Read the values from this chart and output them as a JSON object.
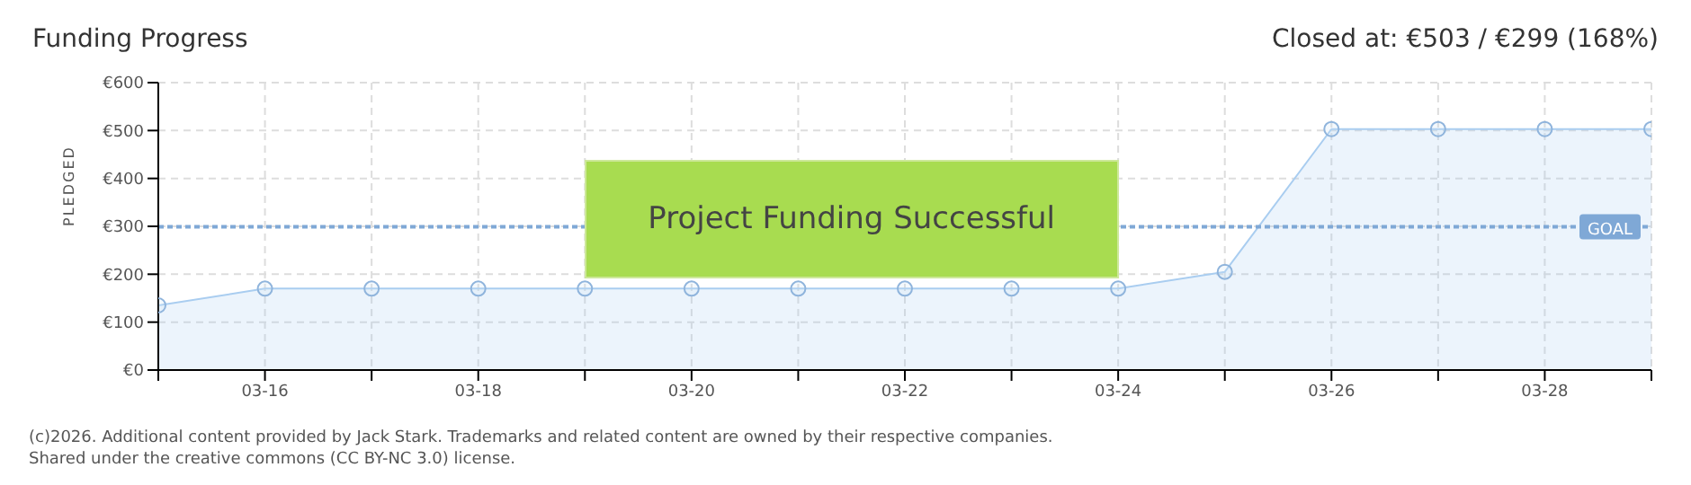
{
  "chart_data": {
    "type": "area",
    "title": "Funding Progress",
    "subtitle": "Closed at: €503 / €299 (168%)",
    "ylabel": "PLEDGED",
    "categories": [
      null,
      "03-16",
      null,
      "03-18",
      null,
      "03-20",
      null,
      "03-22",
      null,
      "03-24",
      null,
      "03-26",
      null,
      "03-28",
      null
    ],
    "series": [
      {
        "color": "#a9cdf0",
        "values": [
          135,
          170,
          170,
          170,
          170,
          170,
          170,
          170,
          170,
          170,
          205,
          503,
          503,
          503,
          503
        ]
      }
    ],
    "ylim": [
      0,
      600
    ],
    "yticks": [
      {
        "value": 0,
        "label": "€0"
      },
      {
        "value": 100,
        "label": "€100"
      },
      {
        "value": 200,
        "label": "€200"
      },
      {
        "value": 300,
        "label": "€300"
      },
      {
        "value": 400,
        "label": "€400"
      },
      {
        "value": 500,
        "label": "€500"
      },
      {
        "value": 600,
        "label": "€600"
      }
    ],
    "ref_lines": [
      {
        "axis": "y",
        "value": 299,
        "label": "GOAL",
        "color": "#7fa8d6",
        "line_style": "dotted"
      }
    ],
    "grid": true,
    "marker": "circle",
    "legend": false,
    "annotations": [
      "Project Funding Successful",
      "(c)2026. Additional content provided by Jack Stark. Trademarks and related content are owned by their respective companies.",
      "Shared under the creative commons (CC BY-NC 3.0) license."
    ]
  }
}
